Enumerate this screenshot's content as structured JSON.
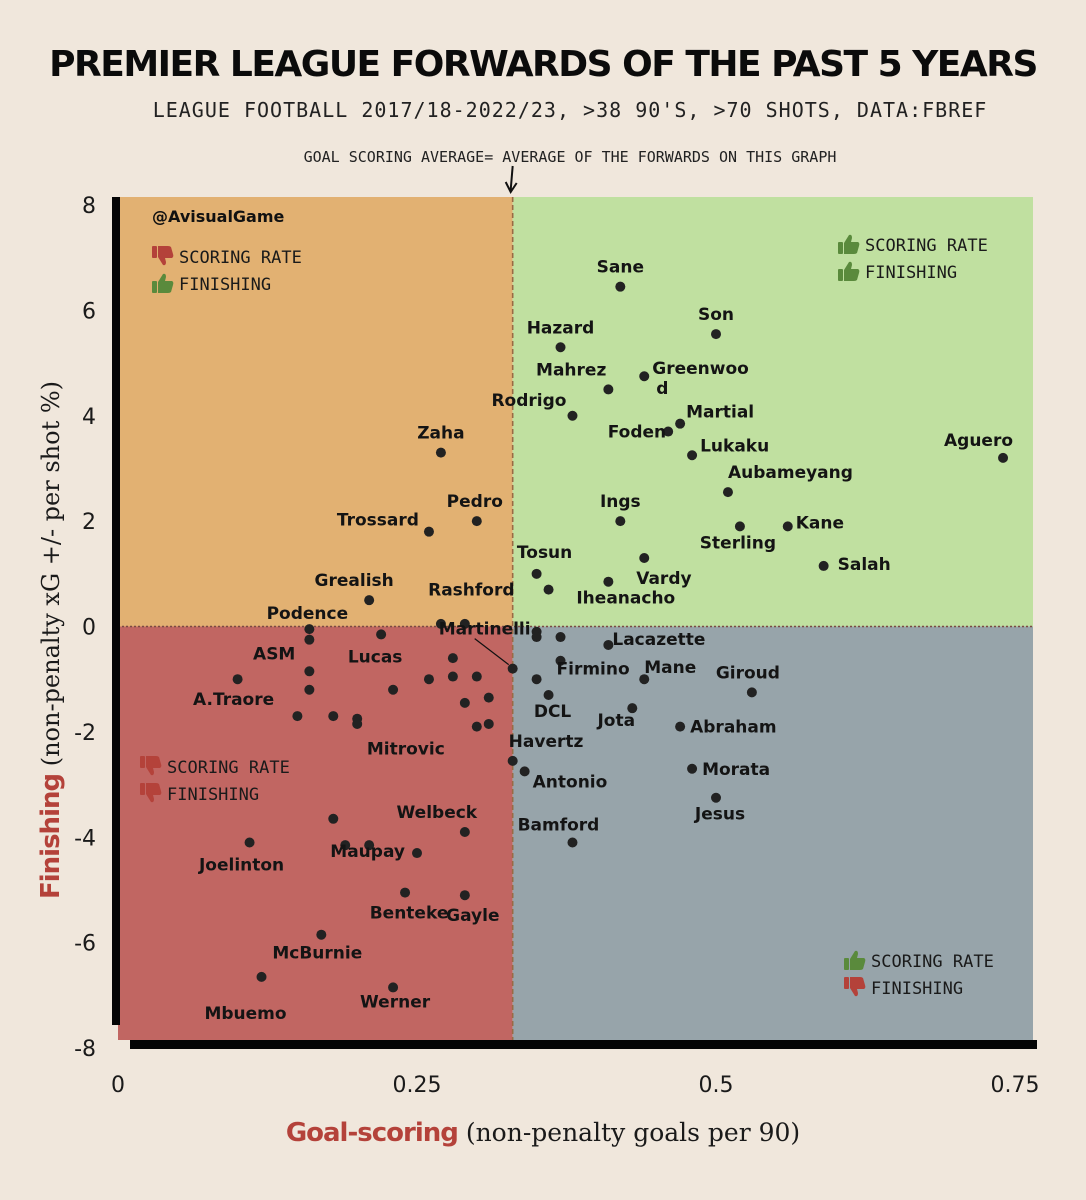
{
  "header": {
    "title": "PREMIER LEAGUE FORWARDS OF THE PAST 5 YEARS",
    "subtitle": "LEAGUE FOOTBALL 2017/18-2022/23, >38 90'S, >70 SHOTS, DATA:FBREF",
    "average_note": "GOAL SCORING AVERAGE= AVERAGE OF THE FORWARDS  ON THIS GRAPH"
  },
  "handle": "@AvisualGame",
  "axes": {
    "xlabel_accent": "Goal-scoring",
    "xlabel_rest": " (non-penalty goals per 90)",
    "ylabel_accent": "Finishing",
    "ylabel_rest": " (non-penalty xG +/- per shot %)"
  },
  "quadrants": {
    "top_left": {
      "line1": "SCORING RATE",
      "line2": "FINISHING",
      "icon1": "thumbs-down",
      "icon2": "thumbs-up"
    },
    "top_right": {
      "line1": "SCORING RATE",
      "line2": "FINISHING",
      "icon1": "thumbs-up",
      "icon2": "thumbs-up"
    },
    "bottom_left": {
      "line1": "SCORING RATE",
      "line2": "FINISHING",
      "icon1": "thumbs-down",
      "icon2": "thumbs-down"
    },
    "bottom_right": {
      "line1": "SCORING RATE",
      "line2": "FINISHING",
      "icon1": "thumbs-up",
      "icon2": "thumbs-down"
    }
  },
  "colors": {
    "top_left": "#e2b172",
    "top_right": "#c0e0a0",
    "bottom_left": "#c16662",
    "bottom_right": "#97a4aa",
    "accent_red": "#b4423a",
    "thumb_up": "#5a8a3c",
    "thumb_down": "#b4423a",
    "point": "#222222"
  },
  "chart_data": {
    "type": "scatter",
    "title": "PREMIER LEAGUE FORWARDS OF THE PAST 5 YEARS",
    "xlabel": "Goal-scoring (non-penalty goals per 90)",
    "ylabel": "Finishing (non-penalty xG +/- per shot %)",
    "xlim": [
      0,
      0.75
    ],
    "ylim": [
      -8,
      8
    ],
    "xticks": [
      "0",
      "0.25",
      "0.5",
      "0.75"
    ],
    "yticks": [
      "8",
      "6",
      "4",
      "2",
      "0",
      "-2",
      "-4",
      "-6",
      "-8"
    ],
    "average_x": 0.33,
    "average_y": 0,
    "grid": false,
    "points": [
      {
        "name": "Sane",
        "x": 0.42,
        "y": 6.45
      },
      {
        "name": "Son",
        "x": 0.5,
        "y": 5.55
      },
      {
        "name": "Hazard",
        "x": 0.37,
        "y": 5.3
      },
      {
        "name": "Mahrez",
        "x": 0.41,
        "y": 4.5
      },
      {
        "name": "Greenwood",
        "x": 0.44,
        "y": 4.75
      },
      {
        "name": "Rodrigo",
        "x": 0.38,
        "y": 4.0
      },
      {
        "name": "Martial",
        "x": 0.47,
        "y": 3.85
      },
      {
        "name": "Foden",
        "x": 0.46,
        "y": 3.7
      },
      {
        "name": "Lukaku",
        "x": 0.48,
        "y": 3.25
      },
      {
        "name": "Aguero",
        "x": 0.74,
        "y": 3.2
      },
      {
        "name": "Aubameyang",
        "x": 0.51,
        "y": 2.55
      },
      {
        "name": "Ings",
        "x": 0.42,
        "y": 2.0
      },
      {
        "name": "Kane",
        "x": 0.56,
        "y": 1.9
      },
      {
        "name": "Sterling",
        "x": 0.52,
        "y": 1.9
      },
      {
        "name": "Salah",
        "x": 0.59,
        "y": 1.15
      },
      {
        "name": "Vardy",
        "x": 0.44,
        "y": 1.3
      },
      {
        "name": "Tosun",
        "x": 0.35,
        "y": 1.0
      },
      {
        "name": "Iheanacho",
        "x": 0.41,
        "y": 0.85
      },
      {
        "name": "Rashford",
        "x": 0.36,
        "y": 0.7
      },
      {
        "name": "Zaha",
        "x": 0.27,
        "y": 3.3
      },
      {
        "name": "Pedro",
        "x": 0.3,
        "y": 2.0
      },
      {
        "name": "Trossard",
        "x": 0.26,
        "y": 1.8
      },
      {
        "name": "Grealish",
        "x": 0.21,
        "y": 0.5
      },
      {
        "name": "Podence",
        "x": 0.16,
        "y": -0.05
      },
      {
        "name": "ASM",
        "x": 0.16,
        "y": -0.25
      },
      {
        "name": "Lucas",
        "x": 0.22,
        "y": -0.15
      },
      {
        "name": "Martinelli",
        "x": 0.33,
        "y": -0.8
      },
      {
        "name": "Lacazette",
        "x": 0.41,
        "y": -0.35
      },
      {
        "name": "Firmino",
        "x": 0.37,
        "y": -0.65
      },
      {
        "name": "Mane",
        "x": 0.44,
        "y": -1.0
      },
      {
        "name": "Giroud",
        "x": 0.53,
        "y": -1.25
      },
      {
        "name": "DCL",
        "x": 0.36,
        "y": -1.3
      },
      {
        "name": "Jota",
        "x": 0.43,
        "y": -1.55
      },
      {
        "name": "Abraham",
        "x": 0.47,
        "y": -1.9
      },
      {
        "name": "A.Traore",
        "x": 0.1,
        "y": -1.0
      },
      {
        "name": "Mitrovic",
        "x": 0.3,
        "y": -1.9
      },
      {
        "name": "Havertz",
        "x": 0.33,
        "y": -2.55
      },
      {
        "name": "Antonio",
        "x": 0.34,
        "y": -2.75
      },
      {
        "name": "Morata",
        "x": 0.48,
        "y": -2.7
      },
      {
        "name": "Jesus",
        "x": 0.5,
        "y": -3.25
      },
      {
        "name": "Welbeck",
        "x": 0.29,
        "y": -3.9
      },
      {
        "name": "Maupay",
        "x": 0.25,
        "y": -4.3
      },
      {
        "name": "Bamford",
        "x": 0.38,
        "y": -4.1
      },
      {
        "name": "Joelinton",
        "x": 0.11,
        "y": -4.1
      },
      {
        "name": "Benteke",
        "x": 0.24,
        "y": -5.05
      },
      {
        "name": "Gayle",
        "x": 0.29,
        "y": -5.1
      },
      {
        "name": "McBurnie",
        "x": 0.17,
        "y": -5.85
      },
      {
        "name": "Mbuemo",
        "x": 0.12,
        "y": -6.65
      },
      {
        "name": "Werner",
        "x": 0.23,
        "y": -6.85
      },
      {
        "name": "",
        "x": 0.16,
        "y": -0.85
      },
      {
        "name": "",
        "x": 0.16,
        "y": -1.2
      },
      {
        "name": "",
        "x": 0.15,
        "y": -1.7
      },
      {
        "name": "",
        "x": 0.18,
        "y": -1.7
      },
      {
        "name": "",
        "x": 0.2,
        "y": -1.75
      },
      {
        "name": "",
        "x": 0.2,
        "y": -1.85
      },
      {
        "name": "",
        "x": 0.23,
        "y": -1.2
      },
      {
        "name": "",
        "x": 0.26,
        "y": -1.0
      },
      {
        "name": "",
        "x": 0.27,
        "y": 0.05
      },
      {
        "name": "",
        "x": 0.28,
        "y": -0.6
      },
      {
        "name": "",
        "x": 0.28,
        "y": -0.95
      },
      {
        "name": "",
        "x": 0.29,
        "y": 0.05
      },
      {
        "name": "",
        "x": 0.29,
        "y": -1.45
      },
      {
        "name": "",
        "x": 0.3,
        "y": -0.95
      },
      {
        "name": "",
        "x": 0.31,
        "y": -1.35
      },
      {
        "name": "",
        "x": 0.31,
        "y": -1.85
      },
      {
        "name": "",
        "x": 0.35,
        "y": -0.1
      },
      {
        "name": "",
        "x": 0.35,
        "y": -0.2
      },
      {
        "name": "",
        "x": 0.35,
        "y": -1.0
      },
      {
        "name": "",
        "x": 0.37,
        "y": -0.2
      },
      {
        "name": "",
        "x": 0.18,
        "y": -3.65
      },
      {
        "name": "",
        "x": 0.19,
        "y": -4.15
      },
      {
        "name": "",
        "x": 0.21,
        "y": -4.15
      }
    ]
  }
}
